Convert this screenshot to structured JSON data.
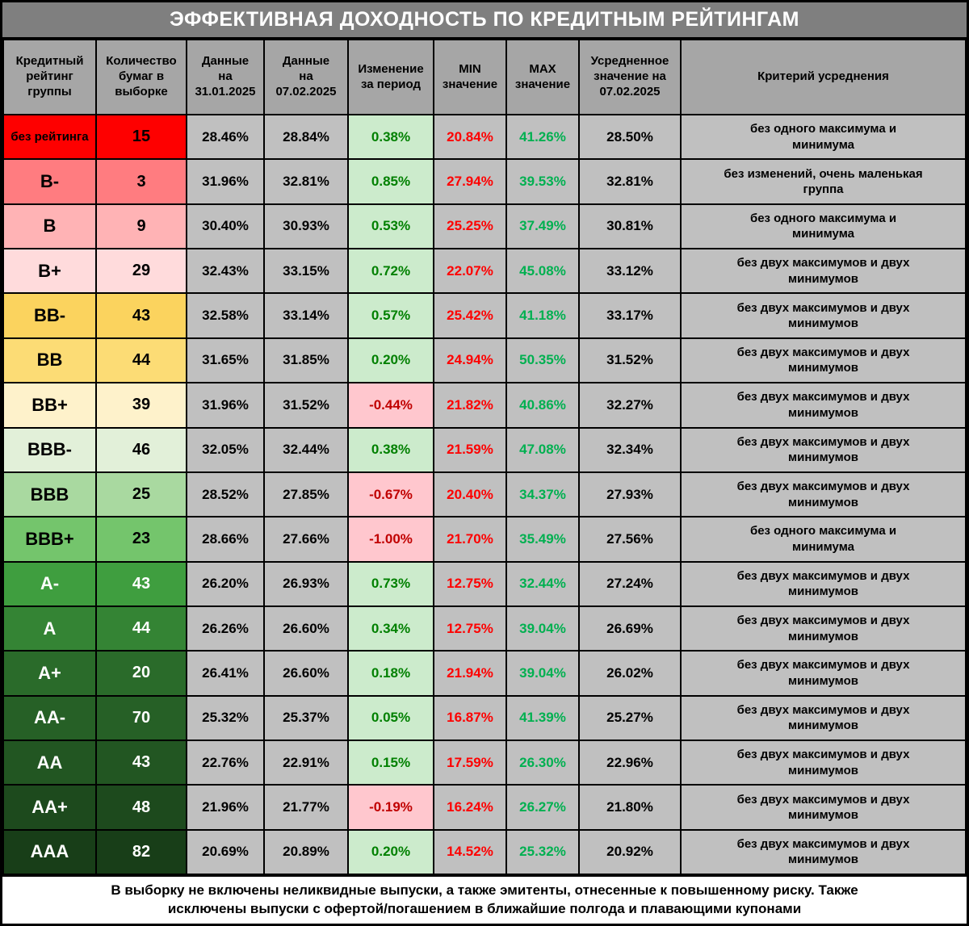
{
  "title": "ЭФФЕКТИВНАЯ ДОХОДНОСТЬ ПО КРЕДИТНЫМ РЕЙТИНГАМ",
  "footer": "В выборку не включены неликвидные выпуски, а также эмитенты, отнесенные к повышенному риску. Также исключены выпуски с офертой/погашением в ближайшие полгода и плавающими купонами",
  "colors": {
    "title_bg": "#7f7f7f",
    "title_fg": "#ffffff",
    "header_bg": "#a6a6a6",
    "cell_bg": "#c0c0c0",
    "change_pos_bg": "#ccebcc",
    "change_pos_fg": "#008000",
    "change_neg_bg": "#ffc7ce",
    "change_neg_fg": "#c00000",
    "min_fg": "#fe0000",
    "max_fg": "#00b050"
  },
  "chart_data": {
    "type": "table",
    "columns": [
      {
        "key": "rating",
        "label": "Кредитный\nрейтинг\nгруппы"
      },
      {
        "key": "count",
        "label": "Количество\nбумаг в\nвыборке"
      },
      {
        "key": "prev",
        "label": "Данные\nна\n31.01.2025"
      },
      {
        "key": "curr",
        "label": "Данные\nна\n07.02.2025"
      },
      {
        "key": "change",
        "label": "Изменение\nза период"
      },
      {
        "key": "min",
        "label": "MIN\nзначение"
      },
      {
        "key": "max",
        "label": "MAX\nзначение"
      },
      {
        "key": "avg",
        "label": "Усредненное\nзначение на\n07.02.2025"
      },
      {
        "key": "criteria",
        "label": "Критерий усреднения"
      }
    ],
    "rows": [
      {
        "rating": "без рейтинга",
        "count": "15",
        "prev": "28.46%",
        "curr": "28.84%",
        "change": "0.38%",
        "change_dir": "pos",
        "min": "20.84%",
        "max": "41.26%",
        "avg": "28.50%",
        "criteria": "без одного максимума и минимума",
        "bg": "#fe0000",
        "fg": "#000000"
      },
      {
        "rating": "B-",
        "count": "3",
        "prev": "31.96%",
        "curr": "32.81%",
        "change": "0.85%",
        "change_dir": "pos",
        "min": "27.94%",
        "max": "39.53%",
        "avg": "32.81%",
        "criteria": "без изменений, очень маленькая группа",
        "bg": "#ff7c80",
        "fg": "#000000"
      },
      {
        "rating": "B",
        "count": "9",
        "prev": "30.40%",
        "curr": "30.93%",
        "change": "0.53%",
        "change_dir": "pos",
        "min": "25.25%",
        "max": "37.49%",
        "avg": "30.81%",
        "criteria": "без одного максимума и минимума",
        "bg": "#ffb3b5",
        "fg": "#000000"
      },
      {
        "rating": "B+",
        "count": "29",
        "prev": "32.43%",
        "curr": "33.15%",
        "change": "0.72%",
        "change_dir": "pos",
        "min": "22.07%",
        "max": "45.08%",
        "avg": "33.12%",
        "criteria": "без двух максимумов и двух минимумов",
        "bg": "#ffdbdc",
        "fg": "#000000"
      },
      {
        "rating": "BB-",
        "count": "43",
        "prev": "32.58%",
        "curr": "33.14%",
        "change": "0.57%",
        "change_dir": "pos",
        "min": "25.42%",
        "max": "41.18%",
        "avg": "33.17%",
        "criteria": "без двух максимумов и двух минимумов",
        "bg": "#fbd35e",
        "fg": "#000000"
      },
      {
        "rating": "BB",
        "count": "44",
        "prev": "31.65%",
        "curr": "31.85%",
        "change": "0.20%",
        "change_dir": "pos",
        "min": "24.94%",
        "max": "50.35%",
        "avg": "31.52%",
        "criteria": "без двух максимумов и двух минимумов",
        "bg": "#fcdc75",
        "fg": "#000000"
      },
      {
        "rating": "BB+",
        "count": "39",
        "prev": "31.96%",
        "curr": "31.52%",
        "change": "-0.44%",
        "change_dir": "neg",
        "min": "21.82%",
        "max": "40.86%",
        "avg": "32.27%",
        "criteria": "без двух максимумов и двух минимумов",
        "bg": "#fef2cb",
        "fg": "#000000"
      },
      {
        "rating": "BBB-",
        "count": "46",
        "prev": "32.05%",
        "curr": "32.44%",
        "change": "0.38%",
        "change_dir": "pos",
        "min": "21.59%",
        "max": "47.08%",
        "avg": "32.34%",
        "criteria": "без двух максимумов и двух минимумов",
        "bg": "#e2f0d9",
        "fg": "#000000"
      },
      {
        "rating": "BBB",
        "count": "25",
        "prev": "28.52%",
        "curr": "27.85%",
        "change": "-0.67%",
        "change_dir": "neg",
        "min": "20.40%",
        "max": "34.37%",
        "avg": "27.93%",
        "criteria": "без двух максимумов и двух минимумов",
        "bg": "#a9d9a0",
        "fg": "#000000"
      },
      {
        "rating": "BBB+",
        "count": "23",
        "prev": "28.66%",
        "curr": "27.66%",
        "change": "-1.00%",
        "change_dir": "neg",
        "min": "21.70%",
        "max": "35.49%",
        "avg": "27.56%",
        "criteria": "без одного максимума и минимума",
        "bg": "#74c56c",
        "fg": "#000000"
      },
      {
        "rating": "A-",
        "count": "43",
        "prev": "26.20%",
        "curr": "26.93%",
        "change": "0.73%",
        "change_dir": "pos",
        "min": "12.75%",
        "max": "32.44%",
        "avg": "27.24%",
        "criteria": "без двух максимумов и двух минимумов",
        "bg": "#3f9e3f",
        "fg": "#ffffff"
      },
      {
        "rating": "A",
        "count": "44",
        "prev": "26.26%",
        "curr": "26.60%",
        "change": "0.34%",
        "change_dir": "pos",
        "min": "12.75%",
        "max": "39.04%",
        "avg": "26.69%",
        "criteria": "без двух максимумов и двух минимумов",
        "bg": "#348434",
        "fg": "#ffffff"
      },
      {
        "rating": "A+",
        "count": "20",
        "prev": "26.41%",
        "curr": "26.60%",
        "change": "0.18%",
        "change_dir": "pos",
        "min": "21.94%",
        "max": "39.04%",
        "avg": "26.02%",
        "criteria": "без двух максимумов и двух минимумов",
        "bg": "#2a6b2a",
        "fg": "#ffffff"
      },
      {
        "rating": "AA-",
        "count": "70",
        "prev": "25.32%",
        "curr": "25.37%",
        "change": "0.05%",
        "change_dir": "pos",
        "min": "16.87%",
        "max": "41.39%",
        "avg": "25.27%",
        "criteria": "без двух максимумов и двух минимумов",
        "bg": "#266026",
        "fg": "#ffffff"
      },
      {
        "rating": "AA",
        "count": "43",
        "prev": "22.76%",
        "curr": "22.91%",
        "change": "0.15%",
        "change_dir": "pos",
        "min": "17.59%",
        "max": "26.30%",
        "avg": "22.96%",
        "criteria": "без двух максимумов и двух минимумов",
        "bg": "#225622",
        "fg": "#ffffff"
      },
      {
        "rating": "AA+",
        "count": "48",
        "prev": "21.96%",
        "curr": "21.77%",
        "change": "-0.19%",
        "change_dir": "neg",
        "min": "16.24%",
        "max": "26.27%",
        "avg": "21.80%",
        "criteria": "без двух максимумов и двух минимумов",
        "bg": "#1d4a1d",
        "fg": "#ffffff"
      },
      {
        "rating": "AAA",
        "count": "82",
        "prev": "20.69%",
        "curr": "20.89%",
        "change": "0.20%",
        "change_dir": "pos",
        "min": "14.52%",
        "max": "25.32%",
        "avg": "20.92%",
        "criteria": "без двух максимумов и двух минимумов",
        "bg": "#183e18",
        "fg": "#ffffff"
      }
    ]
  }
}
